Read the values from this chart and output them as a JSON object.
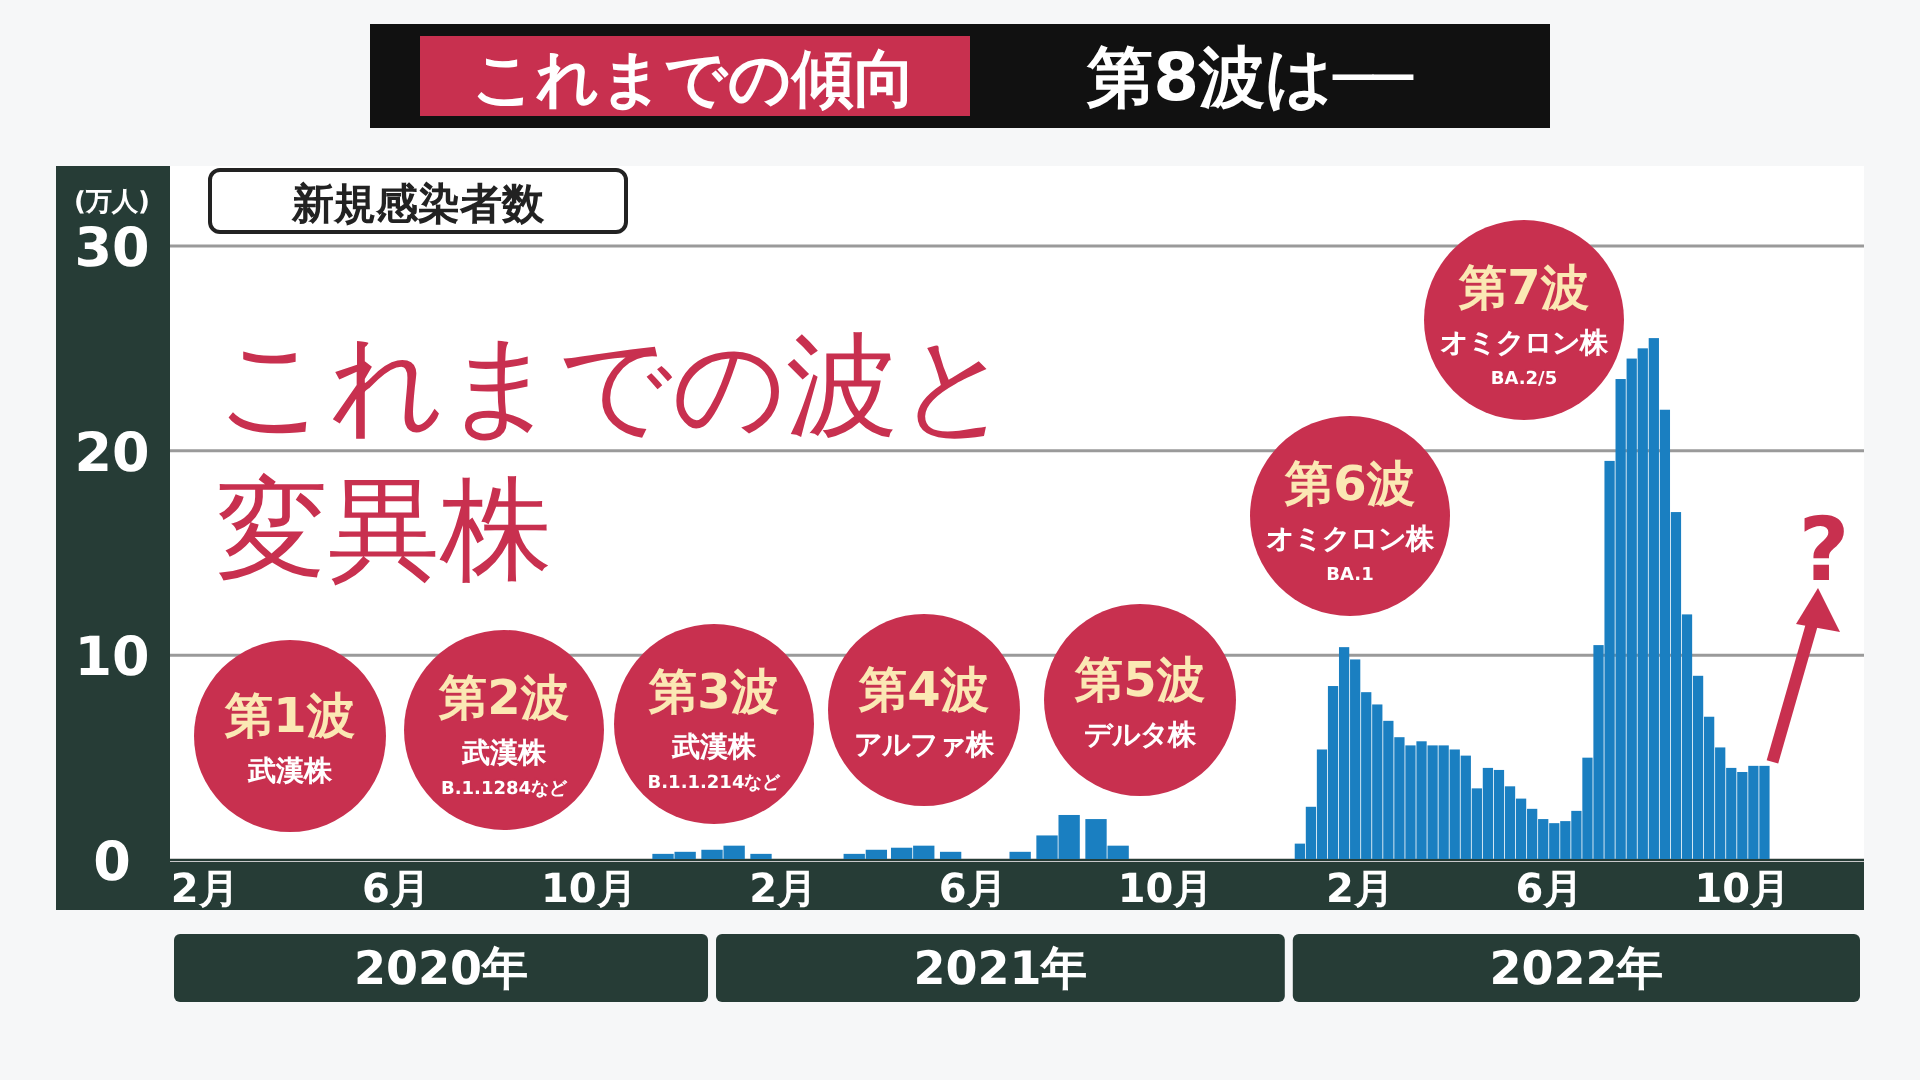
{
  "chart_data": {
    "type": "bar",
    "title": "これまでの傾向 第8波は──",
    "subtitle": "新規感染者数",
    "ylabel": "(万人)",
    "x": [
      "2020-02-01",
      "2020-02-15",
      "2020-03-01",
      "2020-03-15",
      "2020-04-01",
      "2020-04-15",
      "2020-05-01",
      "2020-05-15",
      "2020-06-01",
      "2020-06-15",
      "2020-07-01",
      "2020-07-15",
      "2020-08-01",
      "2020-08-15",
      "2020-09-01",
      "2020-09-15",
      "2020-10-01",
      "2020-10-15",
      "2020-11-01",
      "2020-11-15",
      "2020-12-01",
      "2020-12-15",
      "2021-01-01",
      "2021-01-15",
      "2021-02-01",
      "2021-02-15",
      "2021-03-01",
      "2021-03-15",
      "2021-04-01",
      "2021-04-15",
      "2021-05-01",
      "2021-05-15",
      "2021-06-01",
      "2021-06-15",
      "2021-07-01",
      "2021-07-15",
      "2021-08-01",
      "2021-08-15",
      "2021-09-01",
      "2021-09-15",
      "2021-10-01",
      "2021-10-15",
      "2021-11-01",
      "2021-11-15",
      "2021-12-01",
      "2021-12-15",
      "2022-01-01",
      "2022-01-08",
      "2022-01-15",
      "2022-01-22",
      "2022-01-29",
      "2022-02-05",
      "2022-02-12",
      "2022-02-19",
      "2022-02-26",
      "2022-03-05",
      "2022-03-12",
      "2022-03-19",
      "2022-03-26",
      "2022-04-02",
      "2022-04-09",
      "2022-04-16",
      "2022-04-23",
      "2022-04-30",
      "2022-05-07",
      "2022-05-14",
      "2022-05-21",
      "2022-05-28",
      "2022-06-04",
      "2022-06-11",
      "2022-06-18",
      "2022-06-25",
      "2022-07-02",
      "2022-07-09",
      "2022-07-16",
      "2022-07-23",
      "2022-07-30",
      "2022-08-06",
      "2022-08-13",
      "2022-08-20",
      "2022-08-27",
      "2022-09-03",
      "2022-09-10",
      "2022-09-17",
      "2022-09-24",
      "2022-10-01",
      "2022-10-08",
      "2022-10-15",
      "2022-10-22",
      "2022-10-29"
    ],
    "values": [
      0,
      0,
      0,
      0,
      0,
      0,
      0,
      0,
      0,
      0,
      0,
      0,
      0,
      0,
      0,
      0,
      0,
      0,
      0,
      0,
      0.3,
      0.4,
      0.5,
      0.7,
      0.3,
      0,
      0,
      0,
      0.3,
      0.5,
      0.6,
      0.7,
      0.4,
      0,
      0,
      0.4,
      1.2,
      2.2,
      2,
      0.7,
      0,
      0,
      0,
      0,
      0,
      0,
      0,
      0.8,
      2.6,
      5.4,
      8.5,
      10.4,
      9.8,
      8.2,
      7.6,
      6.8,
      6,
      5.6,
      5.8,
      5.6,
      5.6,
      5.4,
      5.1,
      3.5,
      4.5,
      4.4,
      3.6,
      3,
      2.5,
      2,
      1.8,
      1.9,
      2.4,
      5,
      10.5,
      19.5,
      23.5,
      24.5,
      25,
      25.5,
      22,
      17,
      12,
      9,
      7,
      5.5,
      4.5,
      4.3,
      4.6,
      4.6
    ],
    "color": "#1a7fc1",
    "xlim": [
      "2020-01-24",
      "2022-12-31"
    ],
    "xticks": [
      {
        "value": "2020-02-15",
        "label": "2月"
      },
      {
        "value": "2020-06-15",
        "label": "6月"
      },
      {
        "value": "2020-10-15",
        "label": "10月"
      },
      {
        "value": "2021-02-15",
        "label": "2月"
      },
      {
        "value": "2021-06-15",
        "label": "6月"
      },
      {
        "value": "2021-10-15",
        "label": "10月"
      },
      {
        "value": "2022-02-15",
        "label": "2月"
      },
      {
        "value": "2022-06-15",
        "label": "6月"
      },
      {
        "value": "2022-10-15",
        "label": "10月"
      }
    ],
    "ylim": [
      0,
      30
    ],
    "yticks": [
      0,
      10,
      20,
      30
    ],
    "grid": "y",
    "annotations": [
      "これまでの波と",
      "変異株",
      "第1波",
      "武漢株",
      "第2波",
      "武漢株",
      "B.1.1284など",
      "第3波",
      "武漢株",
      "B.1.1.214など",
      "第4波",
      "アルファ株",
      "第5波",
      "デルタ株",
      "第6波",
      "オミクロン株",
      "BA.1",
      "第7波",
      "オミクロン株",
      "BA.2/5",
      {
        "text": "?",
        "x": "2022-10-29",
        "y": 4.6
      },
      "2020年",
      "2021年",
      "2022年"
    ]
  }
}
